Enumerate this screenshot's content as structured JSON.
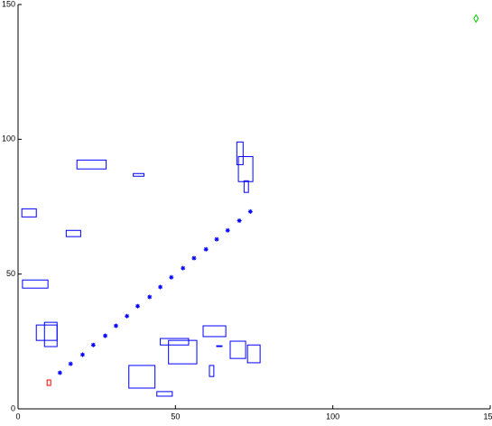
{
  "chart_data": {
    "type": "scatter",
    "xlim": [
      0,
      150
    ],
    "ylim": [
      0,
      150
    ],
    "xticks": [
      0,
      50,
      100,
      150
    ],
    "yticks": [
      0,
      50,
      100,
      150
    ],
    "obstacles": {
      "color": "#0000ff",
      "x0": [
        1.2,
        1.4,
        18.7,
        36.6,
        15.3,
        5.8,
        8.4,
        69.5,
        70,
        71.8,
        58.8,
        45.2,
        47.8,
        63.1,
        67.4,
        72.9,
        60.8,
        35.2,
        44.1
      ],
      "x1": [
        5.8,
        9.5,
        28,
        40,
        19.9,
        12.4,
        12.4,
        71.5,
        74.6,
        73.2,
        66,
        54.2,
        56.8,
        64.8,
        72.3,
        76.9,
        62.2,
        43.5,
        49
      ],
      "y0": [
        71.2,
        44.8,
        89,
        86.3,
        63.9,
        25.4,
        23.1,
        90.6,
        84.3,
        80.3,
        26.8,
        23.7,
        16.7,
        23.1,
        18.7,
        17.1,
        12,
        7.7,
        4.7
      ],
      "y1": [
        74.2,
        47.8,
        92.3,
        87.3,
        66.2,
        31.1,
        32.1,
        99,
        93.6,
        84.6,
        30.8,
        26.1,
        25.4,
        23.4,
        25.1,
        23.7,
        16.1,
        16.1,
        6.4
      ]
    },
    "path": {
      "color": "#0000ff",
      "x": [
        13.3,
        16.7,
        20.5,
        23.9,
        27.7,
        31.1,
        34.6,
        38,
        41.8,
        45.2,
        48.7,
        52.4,
        55.9,
        59.7,
        63.1,
        66.6,
        70.3,
        73.8
      ],
      "y": [
        13.4,
        16.7,
        20.1,
        23.7,
        27.1,
        30.8,
        34.4,
        38.1,
        41.5,
        45.2,
        48.8,
        52.2,
        55.9,
        59.2,
        62.9,
        66.2,
        69.8,
        73.2
      ]
    },
    "start": {
      "color": "#ff0000",
      "x": 9.8,
      "y": 9.7
    },
    "goal": {
      "color": "#00cc00",
      "x": 145.5,
      "y": 144.8
    }
  }
}
